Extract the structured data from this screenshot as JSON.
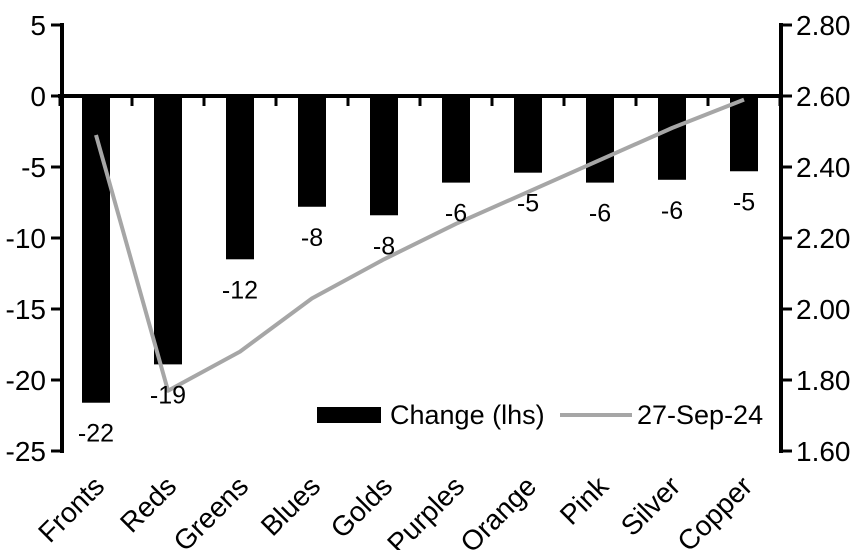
{
  "chart_data": {
    "type": "bar",
    "subtype": "combo-bar-line-dual-axis",
    "background": "#FFFFFF",
    "grid": "off",
    "categories": [
      "Fronts",
      "Reds",
      "Greens",
      "Blues",
      "Golds",
      "Purples",
      "Orange",
      "Pink",
      "Silver",
      "Copper"
    ],
    "series": [
      {
        "name": "Change (lhs)",
        "type": "bar",
        "axis": "left",
        "color": "#000000",
        "values": [
          -22,
          -19,
          -12,
          -8,
          -8,
          -6,
          -5,
          -6,
          -6,
          -5
        ],
        "plot_values": [
          -21.6,
          -18.9,
          -11.5,
          -7.8,
          -8.4,
          -6.1,
          -5.4,
          -6.1,
          -5.9,
          -5.3
        ],
        "data_labels": [
          "-22",
          "-19",
          "-12",
          "-8",
          "-8",
          "-6",
          "-5",
          "-6",
          "-6",
          "-5"
        ]
      },
      {
        "name": "27-Sep-24",
        "type": "line",
        "axis": "right",
        "color": "#A6A6A6",
        "values": [
          2.49,
          1.77,
          1.88,
          2.03,
          2.14,
          2.24,
          2.33,
          2.42,
          2.51,
          2.59
        ]
      }
    ],
    "left_axis": {
      "min": -25,
      "max": 5,
      "tick_step": 5,
      "tick_labels": [
        "5",
        "0",
        "-5",
        "-10",
        "-15",
        "-20",
        "-25"
      ]
    },
    "right_axis": {
      "min": 1.6,
      "max": 2.8,
      "tick_step": 0.2,
      "tick_labels": [
        "2.80",
        "2.60",
        "2.40",
        "2.20",
        "2.00",
        "1.80",
        "1.60"
      ]
    },
    "legend": {
      "position": "bottom-center-inside",
      "items": [
        {
          "label": "Change (lhs)",
          "swatch": "bar",
          "color": "#000000"
        },
        {
          "label": "27-Sep-24",
          "swatch": "line",
          "color": "#A6A6A6"
        }
      ]
    }
  }
}
